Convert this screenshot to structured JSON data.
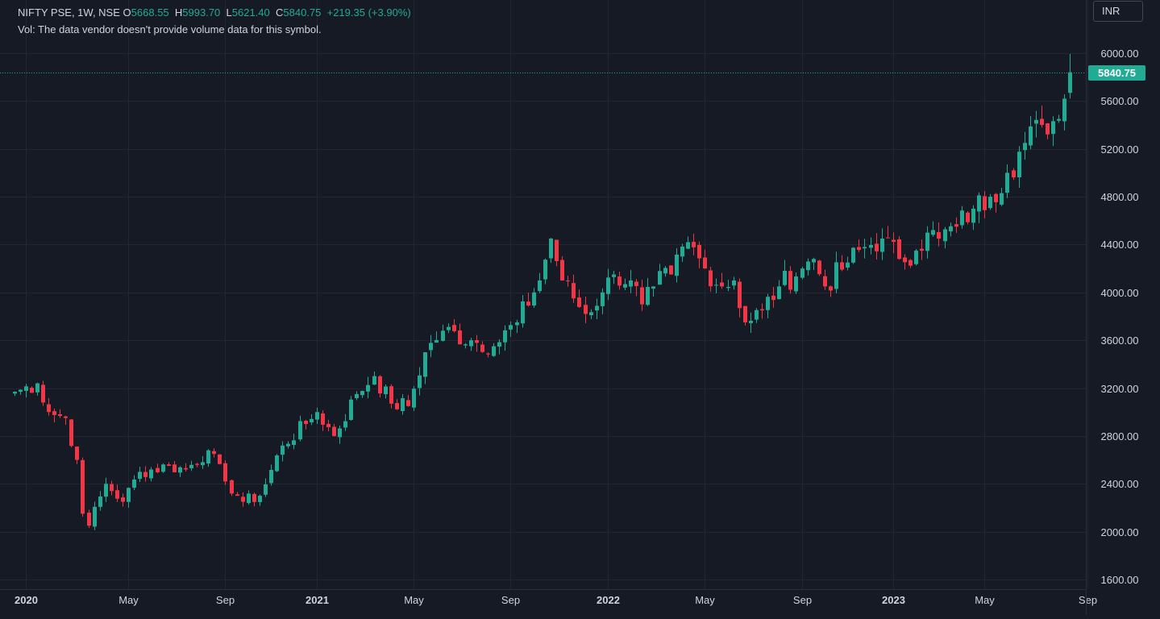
{
  "legend": {
    "symbol": "NIFTY PSE, 1W, NSE",
    "o_label": "O",
    "o_value": "5668.55",
    "h_label": "H",
    "h_value": "5993.70",
    "l_label": "L",
    "l_value": "5621.40",
    "c_label": "C",
    "c_value": "5840.75",
    "change": "+219.35 (+3.90%)",
    "volume_note": "Vol: The data vendor doesn't provide volume data for this symbol."
  },
  "currency": "INR",
  "last_price_label": "5840.75",
  "colors": {
    "background": "#161a25",
    "grid": "#232632",
    "up": "#22ab94",
    "down": "#f23645",
    "text": "#d1d4dc"
  },
  "chart_data": {
    "type": "candlestick",
    "interval": "1W",
    "ylim": [
      1600,
      6000
    ],
    "y_ticks": [
      "6000.00",
      "5600.00",
      "5200.00",
      "4800.00",
      "4400.00",
      "4000.00",
      "3600.00",
      "3200.00",
      "2800.00",
      "2400.00",
      "2000.00",
      "1600.00"
    ],
    "x_ticks": [
      {
        "label": "2020",
        "week": 2,
        "bold": true
      },
      {
        "label": "May",
        "week": 20,
        "bold": false
      },
      {
        "label": "Sep",
        "week": 37,
        "bold": false
      },
      {
        "label": "2021",
        "week": 53,
        "bold": true
      },
      {
        "label": "May",
        "week": 70,
        "bold": false
      },
      {
        "label": "Sep",
        "week": 87,
        "bold": false
      },
      {
        "label": "2022",
        "week": 104,
        "bold": true
      },
      {
        "label": "May",
        "week": 121,
        "bold": false
      },
      {
        "label": "Sep",
        "week": 138,
        "bold": false
      },
      {
        "label": "2023",
        "week": 154,
        "bold": true
      },
      {
        "label": "May",
        "week": 170,
        "bold": false
      },
      {
        "label": "Sep",
        "week": 188,
        "bold": false
      }
    ],
    "anchors": [
      [
        0,
        3170
      ],
      [
        4,
        3240
      ],
      [
        6,
        3000
      ],
      [
        9,
        2950
      ],
      [
        11,
        2600
      ],
      [
        12,
        2150
      ],
      [
        13,
        2050
      ],
      [
        16,
        2400
      ],
      [
        19,
        2250
      ],
      [
        22,
        2500
      ],
      [
        27,
        2550
      ],
      [
        30,
        2520
      ],
      [
        34,
        2680
      ],
      [
        37,
        2420
      ],
      [
        40,
        2250
      ],
      [
        43,
        2300
      ],
      [
        47,
        2720
      ],
      [
        51,
        2900
      ],
      [
        53,
        3000
      ],
      [
        56,
        2800
      ],
      [
        60,
        3150
      ],
      [
        63,
        3300
      ],
      [
        66,
        3070
      ],
      [
        69,
        3050
      ],
      [
        72,
        3500
      ],
      [
        75,
        3680
      ],
      [
        80,
        3600
      ],
      [
        84,
        3550
      ],
      [
        88,
        3750
      ],
      [
        92,
        4100
      ],
      [
        94,
        4450
      ],
      [
        96,
        4100
      ],
      [
        100,
        3820
      ],
      [
        103,
        4000
      ],
      [
        105,
        4150
      ],
      [
        108,
        4100
      ],
      [
        110,
        3900
      ],
      [
        112,
        4050
      ],
      [
        115,
        4150
      ],
      [
        118,
        4420
      ],
      [
        121,
        4200
      ],
      [
        124,
        4050
      ],
      [
        126,
        4100
      ],
      [
        128,
        3750
      ],
      [
        131,
        3850
      ],
      [
        134,
        4050
      ],
      [
        138,
        4200
      ],
      [
        140,
        4280
      ],
      [
        142,
        4050
      ],
      [
        146,
        4250
      ],
      [
        149,
        4380
      ],
      [
        152,
        4450
      ],
      [
        155,
        4280
      ],
      [
        158,
        4350
      ],
      [
        160,
        4500
      ],
      [
        162,
        4450
      ],
      [
        165,
        4550
      ],
      [
        168,
        4700
      ],
      [
        171,
        4800
      ],
      [
        174,
        5000
      ],
      [
        177,
        5250
      ],
      [
        180,
        5400
      ],
      [
        183,
        5450
      ],
      [
        184,
        5620
      ],
      [
        185,
        5840.75
      ]
    ],
    "last_candle": {
      "open": 5668.55,
      "high": 5993.7,
      "low": 5621.4,
      "close": 5840.75
    }
  }
}
